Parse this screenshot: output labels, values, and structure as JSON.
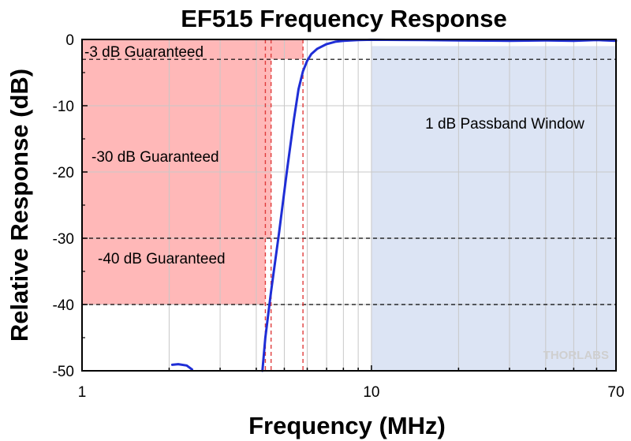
{
  "chart_data": {
    "type": "line",
    "title": "EF515 Frequency Response",
    "xlabel": "Frequency (MHz)",
    "ylabel": "Relative Response (dB)",
    "x_scale": "log",
    "xlim": [
      1,
      70
    ],
    "ylim": [
      -50,
      0
    ],
    "x_ticks": [
      1,
      10,
      70
    ],
    "x_tick_labels": [
      "1",
      "10",
      "70"
    ],
    "y_ticks": [
      0,
      -10,
      -20,
      -30,
      -40,
      -50
    ],
    "y_tick_labels": [
      "0",
      "-10",
      "-20",
      "-30",
      "-40",
      "-50"
    ],
    "grid": true,
    "series": [
      {
        "color": "#1f2ed6",
        "segments": [
          {
            "x": [
              2.05,
              2.15,
              2.3,
              2.4
            ],
            "y": [
              -49.1,
              -49.0,
              -49.2,
              -49.8
            ]
          },
          {
            "x": [
              4.2,
              4.3,
              4.5,
              4.8,
              5.1,
              5.4,
              5.6,
              5.8,
              6.0,
              6.2,
              6.5,
              7.0,
              7.5,
              8.0,
              9.0,
              10.0,
              15.0,
              20.0,
              30.0,
              40.0,
              50.0,
              60.0,
              70.0
            ],
            "y": [
              -50.0,
              -45.0,
              -38.0,
              -29.0,
              -20.0,
              -12.0,
              -7.5,
              -4.8,
              -3.2,
              -2.2,
              -1.4,
              -0.7,
              -0.35,
              -0.2,
              -0.1,
              -0.05,
              -0.1,
              -0.15,
              -0.2,
              -0.15,
              -0.2,
              -0.1,
              -0.2
            ]
          }
        ]
      }
    ],
    "reference_lines": {
      "horizontal_db": [
        -3,
        -30,
        -40
      ],
      "vertical_mhz": [
        4.3,
        4.5,
        5.8
      ],
      "color": "#000000",
      "vertical_color": "#e03c3c"
    },
    "regions": [
      {
        "label": "-3 dB Guaranteed",
        "x": [
          1,
          5.8
        ],
        "y": [
          -3,
          0
        ],
        "color": "#ffb8b8"
      },
      {
        "label": "-30 dB Guaranteed",
        "x": [
          1,
          4.5
        ],
        "y": [
          -30,
          -3
        ],
        "color": "#ffb8b8"
      },
      {
        "label": "-40 dB Guaranteed",
        "x": [
          1,
          4.3
        ],
        "y": [
          -40,
          -30
        ],
        "color": "#ffb8b8"
      },
      {
        "label": "1 dB Passband Window",
        "x": [
          10,
          70
        ],
        "y": [
          -50,
          -1
        ],
        "color": "#dce4f4"
      }
    ],
    "watermark": "THORLABS"
  }
}
